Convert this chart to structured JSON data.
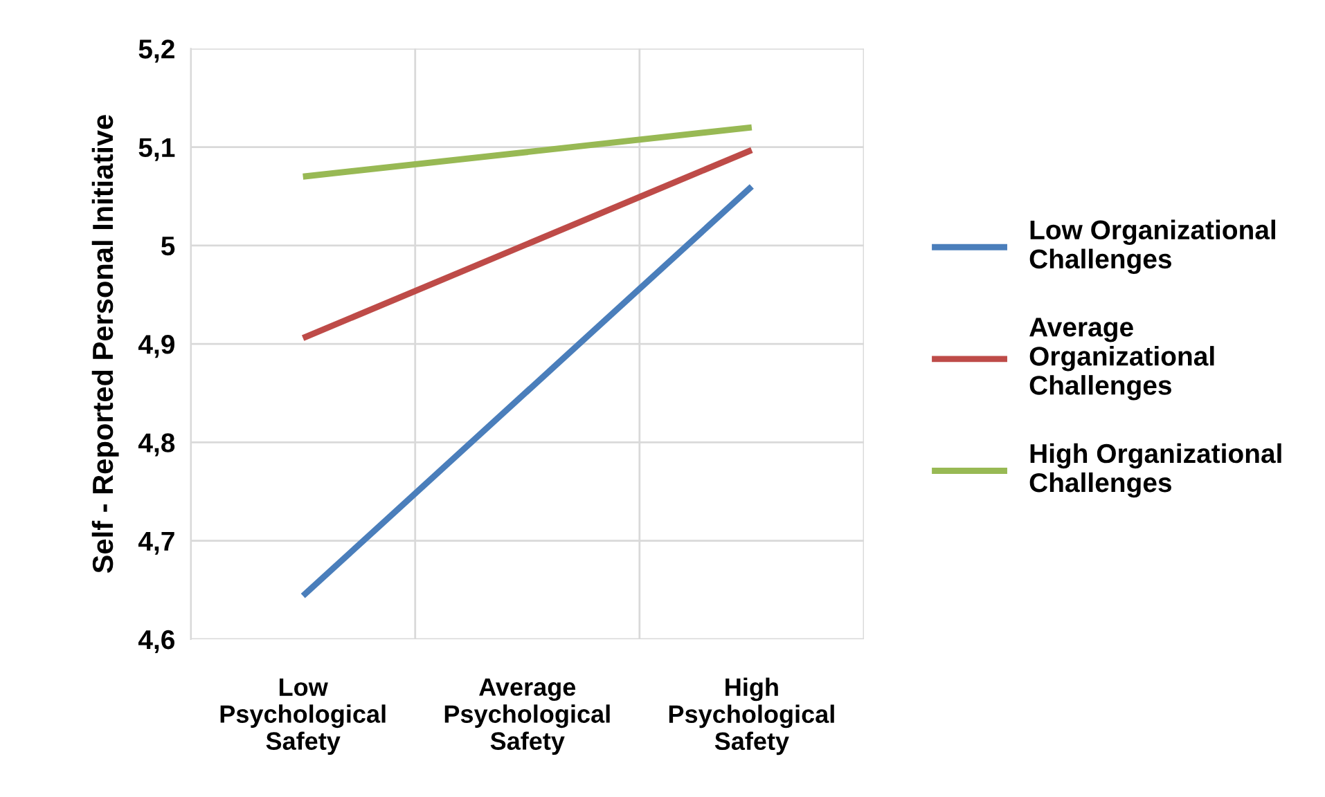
{
  "chart_data": {
    "type": "line",
    "ylabel": "Self - Reported Personal Initiative",
    "categories": [
      "Low\nPsychological\nSafety",
      "Average\nPsychological\nSafety",
      "High\nPsychological\nSafety"
    ],
    "series": [
      {
        "name": "Low Organizational\nChallenges",
        "color": "#4a7ebb",
        "values": [
          4.644,
          null,
          5.06
        ]
      },
      {
        "name": "Average\nOrganizational\nChallenges",
        "color": "#be4b48",
        "values": [
          4.906,
          null,
          5.097
        ]
      },
      {
        "name": "High Organizational\nChallenges",
        "color": "#98b954",
        "values": [
          5.07,
          null,
          5.12
        ]
      }
    ],
    "ylim": [
      4.6,
      5.2
    ],
    "yticks": [
      {
        "value": 4.6,
        "label": "4,6"
      },
      {
        "value": 4.7,
        "label": "4,7"
      },
      {
        "value": 4.8,
        "label": "4,8"
      },
      {
        "value": 4.9,
        "label": "4,9"
      },
      5,
      {
        "value": 5.1,
        "label": "5,1"
      },
      {
        "value": 5.2,
        "label": "5,2"
      }
    ],
    "grid": true,
    "legend": "right",
    "marker": "none",
    "line_style": "solid"
  }
}
